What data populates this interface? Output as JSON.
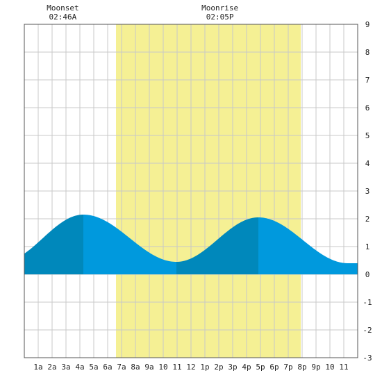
{
  "chart_data": {
    "type": "area",
    "x_unit": "hour of day",
    "xlim": [
      0,
      24
    ],
    "ylim": [
      -3,
      9
    ],
    "y_ticks": [
      -3,
      -2,
      -1,
      0,
      1,
      2,
      3,
      4,
      5,
      6,
      7,
      8,
      9
    ],
    "x_ticks": [
      {
        "x": 1,
        "label": "1a"
      },
      {
        "x": 2,
        "label": "2a"
      },
      {
        "x": 3,
        "label": "3a"
      },
      {
        "x": 4,
        "label": "4a"
      },
      {
        "x": 5,
        "label": "5a"
      },
      {
        "x": 6,
        "label": "6a"
      },
      {
        "x": 7,
        "label": "7a"
      },
      {
        "x": 8,
        "label": "8a"
      },
      {
        "x": 9,
        "label": "9a"
      },
      {
        "x": 10,
        "label": "10"
      },
      {
        "x": 11,
        "label": "11"
      },
      {
        "x": 12,
        "label": "12"
      },
      {
        "x": 13,
        "label": "1p"
      },
      {
        "x": 14,
        "label": "2p"
      },
      {
        "x": 15,
        "label": "3p"
      },
      {
        "x": 16,
        "label": "4p"
      },
      {
        "x": 17,
        "label": "5p"
      },
      {
        "x": 18,
        "label": "6p"
      },
      {
        "x": 19,
        "label": "7p"
      },
      {
        "x": 20,
        "label": "8p"
      },
      {
        "x": 21,
        "label": "9p"
      },
      {
        "x": 22,
        "label": "10"
      },
      {
        "x": 23,
        "label": "11"
      }
    ],
    "daylight": {
      "start": 6.6,
      "end": 19.9
    },
    "tide_extremes": [
      {
        "x": -1.6,
        "y": 0.45
      },
      {
        "x": 4.25,
        "y": 2.15
      },
      {
        "x": 10.95,
        "y": 0.45
      },
      {
        "x": 16.85,
        "y": 2.05
      },
      {
        "x": 23.3,
        "y": 0.4
      }
    ],
    "tide_color": "#0099dd",
    "tide_dark_color": "#0088bb",
    "daylight_color": "#f5f094",
    "grid": true,
    "annotations": [
      {
        "x": 2.77,
        "title": "Moonset",
        "time": "02:46A"
      },
      {
        "x": 14.08,
        "title": "Moonrise",
        "time": "02:05P"
      }
    ]
  }
}
